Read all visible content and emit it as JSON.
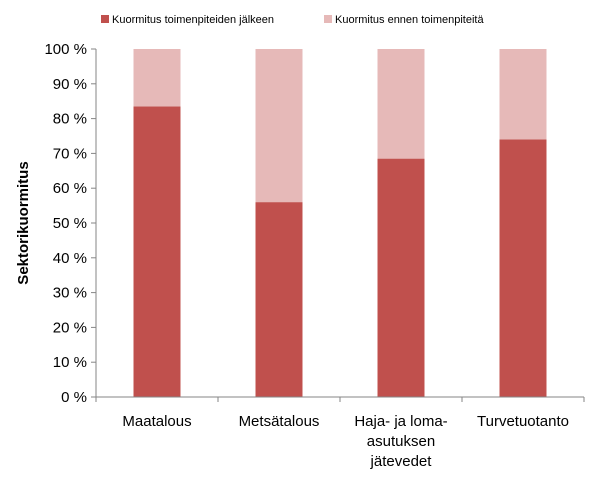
{
  "chart_data": {
    "type": "bar",
    "stacked": true,
    "categories": [
      [
        "Maatalous"
      ],
      [
        "Metsätalous"
      ],
      [
        "Haja- ja loma-",
        "asutuksen",
        "jätevedet"
      ],
      [
        "Turvetuotanto"
      ]
    ],
    "series": [
      {
        "name": "Kuormitus toimenpiteiden jälkeen",
        "values": [
          83.5,
          56,
          68.5,
          74
        ],
        "color": "#c0504d"
      },
      {
        "name": "Kuormitus ennen toimenpiteitä",
        "values": [
          16.5,
          44,
          31.5,
          26
        ],
        "color": "#e6b9b8"
      }
    ],
    "yticks": [
      "0 %",
      "10 %",
      "20 %",
      "30 %",
      "40 %",
      "50 %",
      "60 %",
      "70 %",
      "80 %",
      "90 %",
      "100 %"
    ],
    "ylim": [
      0,
      100
    ],
    "ylabel": "Sektorikuormitus",
    "xlabel": "",
    "legend": "top",
    "grid": false
  }
}
